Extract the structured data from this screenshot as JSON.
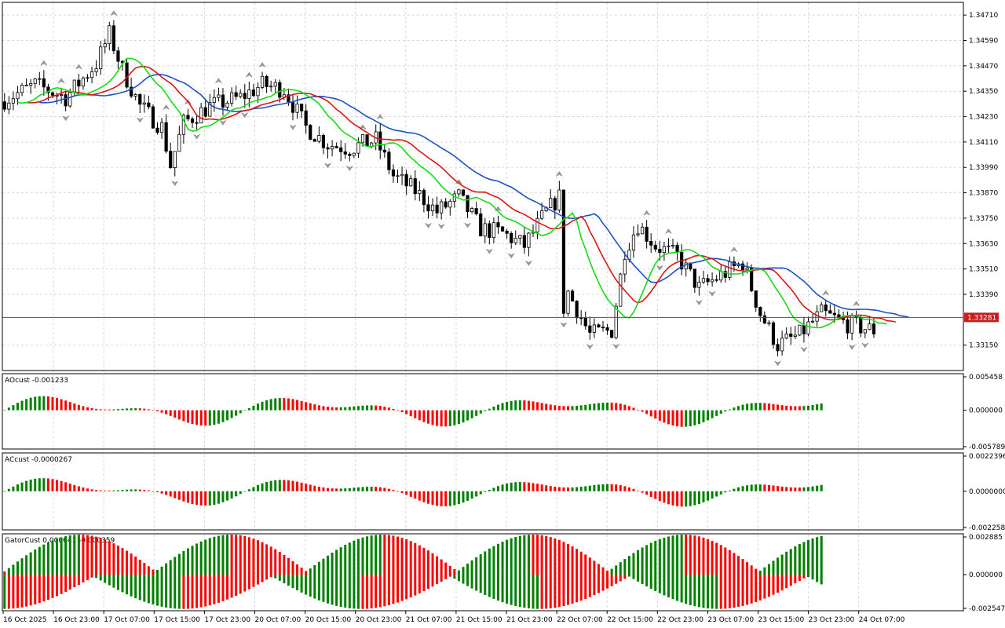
{
  "chart_data": {
    "type": "candlestick",
    "current_price": "1.33281",
    "price_axis": {
      "range": [
        1.3303,
        1.3477
      ],
      "ticks": [
        "1.34710",
        "1.34590",
        "1.34470",
        "1.34350",
        "1.34230",
        "1.34110",
        "1.33990",
        "1.33870",
        "1.33750",
        "1.33630",
        "1.33510",
        "1.33390",
        "1.33150"
      ]
    },
    "x_labels": [
      "16 Oct 2025",
      "16 Oct 23:00",
      "17 Oct 07:00",
      "17 Oct 15:00",
      "17 Oct 23:00",
      "20 Oct 07:00",
      "20 Oct 15:00",
      "20 Oct 23:00",
      "21 Oct 07:00",
      "21 Oct 15:00",
      "21 Oct 23:00",
      "22 Oct 07:00",
      "22 Oct 15:00",
      "22 Oct 23:00",
      "23 Oct 07:00",
      "23 Oct 15:00",
      "23 Oct 23:00",
      "24 Oct 07:00"
    ],
    "alligator_colors": {
      "jaw": "#1e50c8",
      "teeth": "#dc1414",
      "lips": "#14dc14"
    },
    "fractal_color": "#808080",
    "indicators": [
      {
        "name": "AOcust",
        "title": "AOcust -0.001233",
        "ticks": [
          "0.005458",
          "0.000000",
          "-0.005789"
        ],
        "range": [
          -0.005789,
          0.005458
        ],
        "up_color": "#008000",
        "down_color": "#ff0000"
      },
      {
        "name": "ACcust",
        "title": "ACcust -0.0000267",
        "ticks": [
          "0.0022396",
          "0.0000000",
          "-0.0022587"
        ],
        "range": [
          -0.0022587,
          0.0022396
        ],
        "up_color": "#008000",
        "down_color": "#ff0000"
      },
      {
        "name": "GatorCust",
        "title": "GatorCust 0.000641 -0.000359",
        "ticks": [
          "0.002885",
          "0.000000",
          "-0.002547"
        ],
        "range": [
          -0.002547,
          0.002885
        ],
        "up_color": "#008000",
        "down_color": "#ff0000"
      }
    ]
  }
}
